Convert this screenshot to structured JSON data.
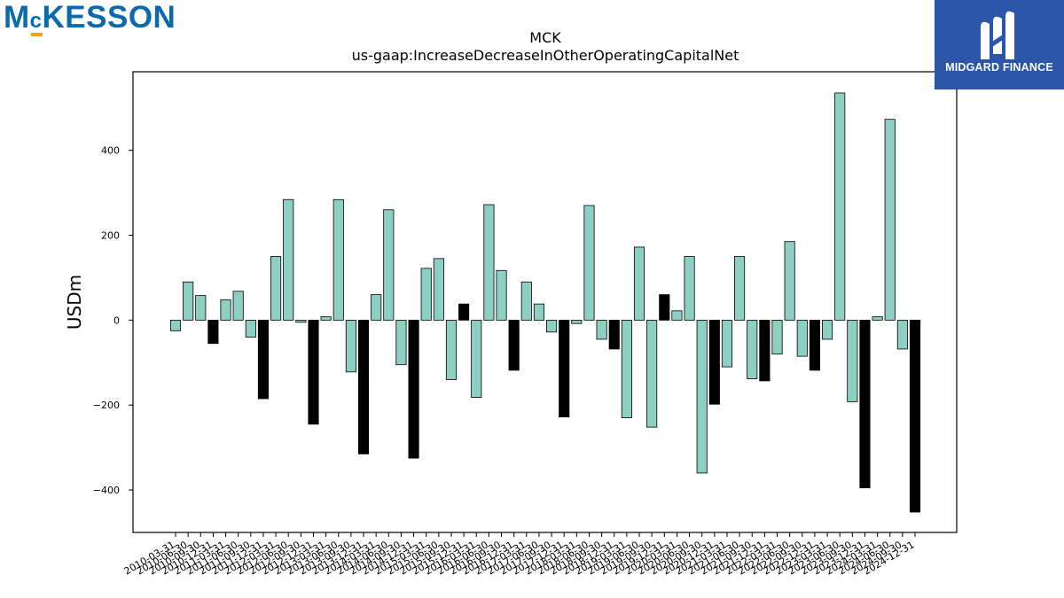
{
  "branding": {
    "company_logo_prefix": "M",
    "company_logo_small": "c",
    "company_logo_rest": "KESSON",
    "sponsor_name": "MIDGARD FINANCE",
    "sponsor_icon": "midgard-m-icon"
  },
  "colors": {
    "bar_default": "#8dcfc2",
    "bar_q4": "#000000",
    "logo_blue": "#0a6aac",
    "logo_orange": "#f39a2a",
    "sponsor_bg": "#2c57a8"
  },
  "chart_data": {
    "type": "bar",
    "title": "MCK",
    "subtitle": "us-gaap:IncreaseDecreaseInOtherOperatingCapitalNet",
    "xlabel": "",
    "ylabel": "USDm",
    "ylim": [
      -500,
      585
    ],
    "yticks": [
      -400,
      -200,
      0,
      200,
      400
    ],
    "grid": false,
    "categories": [
      "2010-03-31",
      "2010-06-30",
      "2010-09-30",
      "2010-12-31",
      "2011-03-31",
      "2011-06-30",
      "2011-09-30",
      "2011-12-31",
      "2012-03-31",
      "2012-06-30",
      "2012-09-30",
      "2012-12-31",
      "2013-03-31",
      "2013-06-30",
      "2013-09-30",
      "2013-12-31",
      "2014-03-31",
      "2014-06-30",
      "2014-09-30",
      "2014-12-31",
      "2015-03-31",
      "2015-06-30",
      "2015-09-30",
      "2015-12-31",
      "2016-03-31",
      "2016-06-30",
      "2016-09-30",
      "2016-12-31",
      "2017-03-31",
      "2017-06-30",
      "2017-09-30",
      "2017-12-31",
      "2018-03-31",
      "2018-06-30",
      "2018-09-30",
      "2018-12-31",
      "2019-03-31",
      "2019-06-30",
      "2019-09-30",
      "2019-12-31",
      "2020-03-31",
      "2020-06-30",
      "2020-09-30",
      "2020-12-31",
      "2021-03-31",
      "2021-06-30",
      "2021-09-30",
      "2021-12-31",
      "2022-03-31",
      "2022-06-30",
      "2022-09-30",
      "2022-12-31",
      "2023-03-31",
      "2023-06-30",
      "2023-09-30",
      "2023-12-31",
      "2024-03-31",
      "2024-06-30",
      "2024-09-30",
      "2024-12-31"
    ],
    "values": [
      -25,
      90,
      58,
      -55,
      48,
      68,
      -40,
      -185,
      150,
      284,
      -5,
      -245,
      8,
      284,
      -122,
      -315,
      60,
      260,
      -105,
      -325,
      122,
      145,
      -140,
      38,
      -182,
      272,
      117,
      -118,
      90,
      38,
      -28,
      -228,
      -8,
      270,
      -45,
      -68,
      -230,
      172,
      -252,
      60,
      22,
      150,
      -360,
      -198,
      -110,
      150,
      -138,
      -143,
      -80,
      185,
      -85,
      -118,
      -45,
      535,
      -192,
      -395,
      8,
      473,
      -68,
      -452
    ],
    "highlight": [
      false,
      false,
      false,
      true,
      false,
      false,
      false,
      true,
      false,
      false,
      false,
      true,
      false,
      false,
      false,
      true,
      false,
      false,
      false,
      true,
      false,
      false,
      false,
      true,
      false,
      false,
      false,
      true,
      false,
      false,
      false,
      true,
      false,
      false,
      false,
      true,
      false,
      false,
      false,
      true,
      false,
      false,
      false,
      true,
      false,
      false,
      false,
      true,
      false,
      false,
      false,
      true,
      false,
      false,
      false,
      true,
      false,
      false,
      false,
      true
    ]
  }
}
